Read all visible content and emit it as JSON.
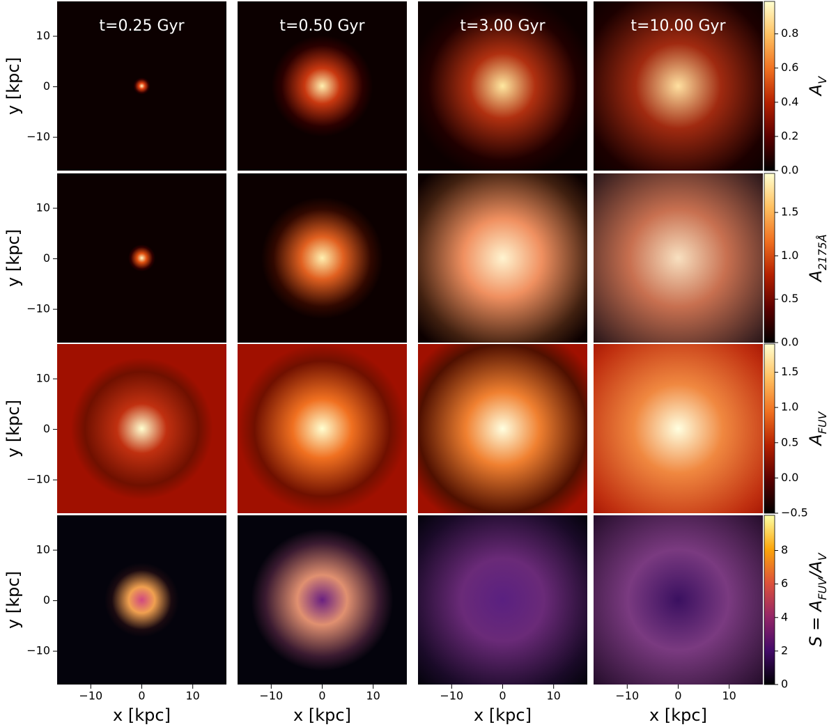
{
  "chart_data": {
    "type": "heatmap",
    "titles": [
      "t=0.25 Gyr",
      "t=0.50 Gyr",
      "t=3.00 Gyr",
      "t=10.00 Gyr"
    ],
    "xlabel": "x [kpc]",
    "ylabel": "y [kpc]",
    "xlim": [
      -16.6,
      16.6
    ],
    "ylim": [
      -16.6,
      16.9
    ],
    "xticks": [
      {
        "value": -10,
        "label": "−10"
      },
      0,
      10
    ],
    "yticks": [
      {
        "value": -10,
        "label": "−10"
      },
      0,
      10
    ],
    "rows": [
      {
        "colorbar": {
          "label": [
            {
              "text": "A"
            },
            {
              "sub": "V"
            }
          ],
          "colormap": "afmhot",
          "lim": [
            0,
            0.99
          ],
          "ticks": [
            {
              "value": 0,
              "label": "0.0"
            },
            0.2,
            0.4,
            0.6,
            0.8
          ]
        }
      },
      {
        "colorbar": {
          "label": [
            {
              "text": "A"
            },
            {
              "sub": "2175Å"
            }
          ],
          "colormap": "afmhot",
          "lim": [
            0,
            1.95
          ],
          "ticks": [
            {
              "value": 0,
              "label": "0.0"
            },
            0.5,
            {
              "value": 1,
              "label": "1.0"
            },
            1.5
          ]
        }
      },
      {
        "colorbar": {
          "label": [
            {
              "text": "A"
            },
            {
              "sub": "FUV"
            }
          ],
          "colormap": "afmhot",
          "lim": [
            -0.5,
            1.9
          ],
          "ticks": [
            {
              "value": -0.5,
              "label": "−0.5"
            },
            {
              "value": 0,
              "label": "0.0"
            },
            0.5,
            {
              "value": 1,
              "label": "1.0"
            },
            1.5
          ]
        }
      },
      {
        "colorbar": {
          "label": [
            {
              "text": "S = A"
            },
            {
              "sub": "FUV"
            },
            {
              "text": "/A"
            },
            {
              "sub": "V"
            }
          ],
          "colormap": "inferno",
          "lim": [
            0,
            10.1
          ],
          "ticks": [
            0,
            2,
            4,
            6,
            8
          ]
        }
      }
    ]
  }
}
